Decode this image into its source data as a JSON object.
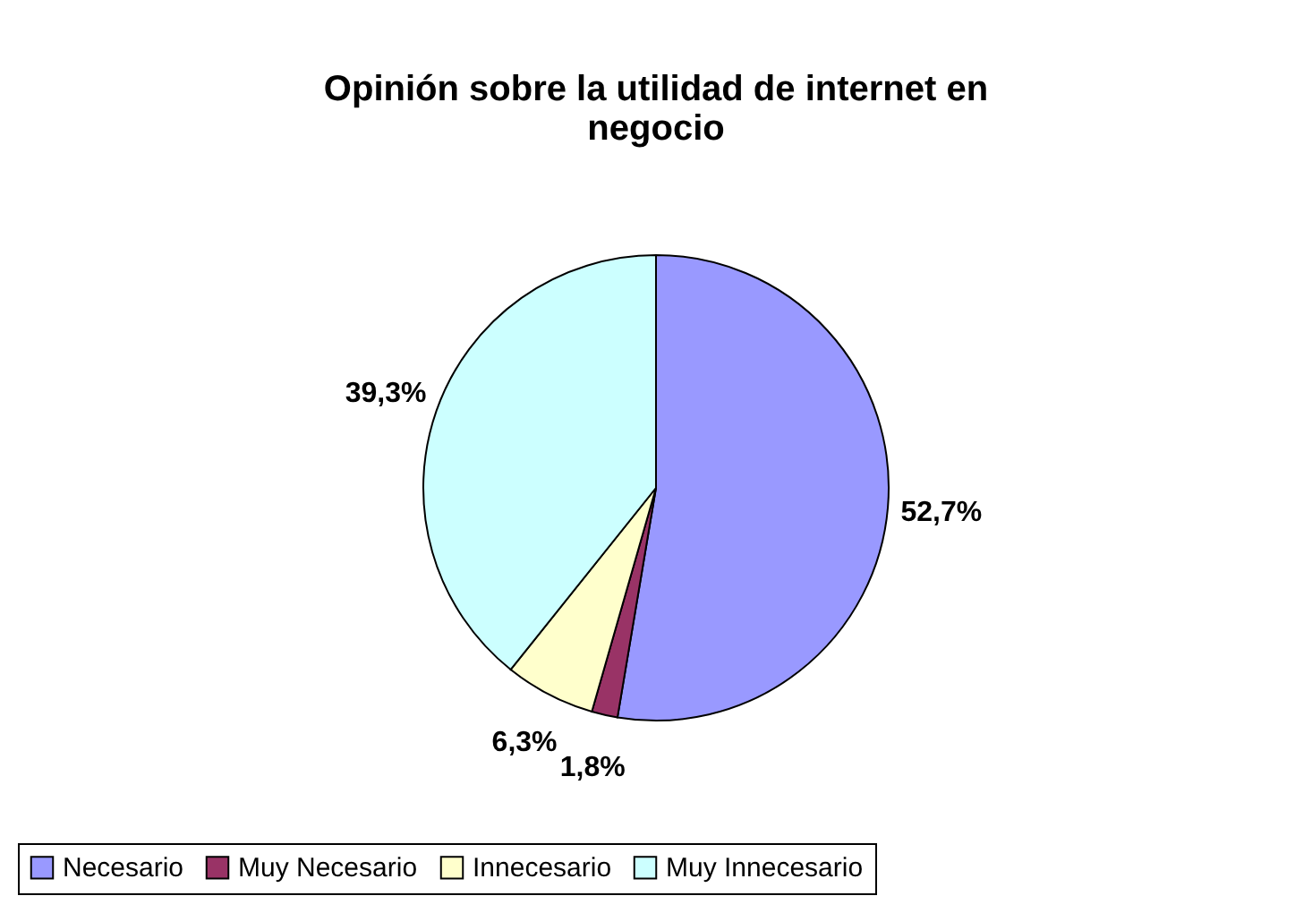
{
  "chart_data": {
    "type": "pie",
    "title": "Opinión sobre la utilidad de internet en negocio",
    "categories": [
      "Necesario",
      "Muy Necesario",
      "Innecesario",
      "Muy Innecesario"
    ],
    "values": [
      52.7,
      1.8,
      6.3,
      39.3
    ],
    "colors": [
      "#9999ff",
      "#993366",
      "#ffffcc",
      "#ccffff"
    ],
    "value_labels": [
      "52,7%",
      "1,8%",
      "6,3%",
      "39,3%"
    ],
    "legend": "bottom"
  }
}
